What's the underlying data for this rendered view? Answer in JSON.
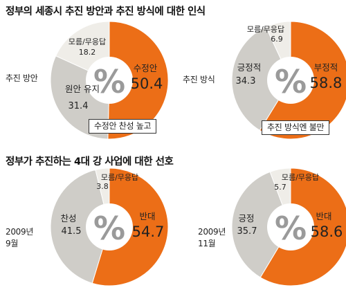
{
  "sections": {
    "top_title": "정부의 세종시 추진 방안과 추진 방식에 대한 인식",
    "bottom_title": "정부가 추진하는 4대 강 사업에 대한 선호"
  },
  "side_labels": {
    "pie1": "추진 방안",
    "pie2": "추진 방식",
    "pie3_year": "2009년",
    "pie3_month": "9월",
    "pie4_year": "2009년",
    "pie4_month": "11월"
  },
  "callouts": {
    "pie1": "수정안 찬성 높고",
    "pie2": "추진 방식엔 불만"
  },
  "center_symbol": "%",
  "colors": {
    "orange": "#ec6e17",
    "gray": "#cfcdc8",
    "light": "#efede8",
    "center": "#ffffff",
    "symbol": "#9a9a9a"
  },
  "chart_data": [
    {
      "type": "pie",
      "title": "추진 방안",
      "slices": [
        {
          "label": "수정안",
          "value": 50.4
        },
        {
          "label": "원안 유지",
          "value": 31.4
        },
        {
          "label": "모름/무응답",
          "value": 18.2
        }
      ]
    },
    {
      "type": "pie",
      "title": "추진 방식",
      "slices": [
        {
          "label": "부정적",
          "value": 58.8
        },
        {
          "label": "긍정적",
          "value": 34.3
        },
        {
          "label": "모름/무응답",
          "value": 6.9
        }
      ]
    },
    {
      "type": "pie",
      "title": "2009년 9월",
      "slices": [
        {
          "label": "반대",
          "value": 54.7
        },
        {
          "label": "찬성",
          "value": 41.5
        },
        {
          "label": "모름/무응답",
          "value": 3.8
        }
      ]
    },
    {
      "type": "pie",
      "title": "2009년 11월",
      "slices": [
        {
          "label": "반대",
          "value": 58.6
        },
        {
          "label": "긍정",
          "value": 35.7
        },
        {
          "label": "모름/무응답",
          "value": 5.7
        }
      ]
    }
  ]
}
